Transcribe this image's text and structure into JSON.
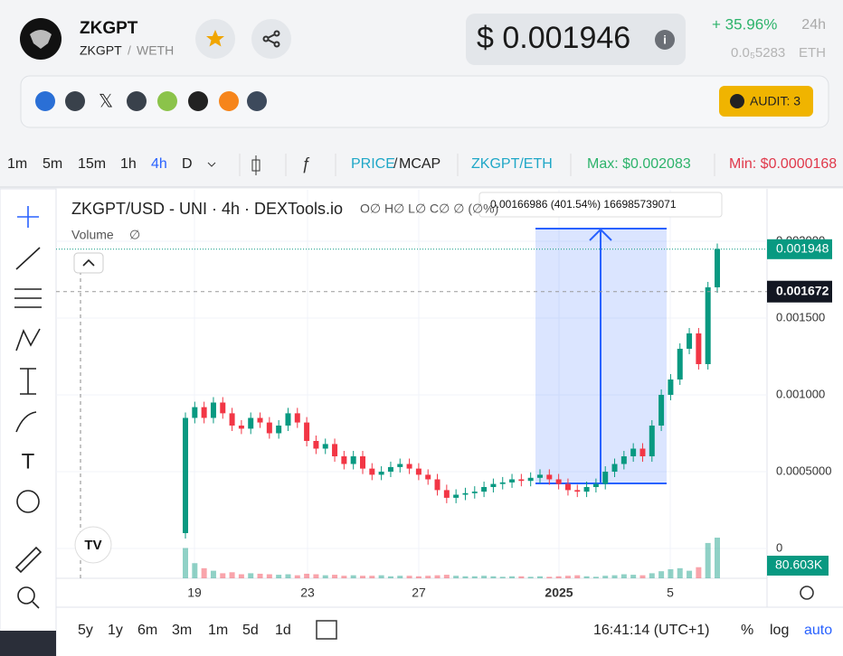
{
  "header": {
    "name": "ZKGPT",
    "pair_base": "ZKGPT",
    "pair_sep": "/",
    "pair_quote": "WETH",
    "price": "$ 0.001946",
    "change": "+ 35.96%",
    "change_period": "24h",
    "eth_price": "0.0₅5283",
    "eth_unit": "ETH",
    "audit": "AUDIT: 3"
  },
  "toolbar": {
    "intervals": [
      "1m",
      "5m",
      "15m",
      "1h",
      "4h",
      "D"
    ],
    "price": "PRICE",
    "sep": "/",
    "mcap": "MCAP",
    "pair": "ZKGPT/ETH",
    "max": "Max: $0.002083",
    "min": "Min: $0.0000168"
  },
  "chart_data": {
    "type": "candlestick",
    "title": "ZKGPT/USD - UNI · 4h · DEXTools.io",
    "ohlc": "O∅ H∅ L∅ C∅ ∅ (∅%)",
    "volume_title": "Volume",
    "volume_value": "∅",
    "tooltip": "0.00166986 (401.54%) 166985739071",
    "first_open": 0.0001,
    "closes": [
      0.00085,
      0.00092,
      0.00085,
      0.00095,
      0.00088,
      0.0008,
      0.00078,
      0.00085,
      0.00082,
      0.00075,
      0.0008,
      0.00088,
      0.00082,
      0.0007,
      0.00065,
      0.00068,
      0.0006,
      0.00055,
      0.0006,
      0.00052,
      0.00048,
      0.0005,
      0.00053,
      0.00055,
      0.00052,
      0.00048,
      0.00045,
      0.00038,
      0.00033,
      0.00035,
      0.00036,
      0.00037,
      0.0004,
      0.00042,
      0.00043,
      0.00045,
      0.00044,
      0.00046,
      0.00048,
      0.00045,
      0.00042,
      0.00038,
      0.00037,
      0.0004,
      0.00042,
      0.0005,
      0.00055,
      0.0006,
      0.00065,
      0.0006,
      0.0008,
      0.001,
      0.0011,
      0.0013,
      0.0014,
      0.0012,
      0.0017,
      0.00195
    ],
    "volumes": [
      60,
      30,
      20,
      15,
      10,
      12,
      8,
      10,
      9,
      8,
      7,
      8,
      6,
      9,
      8,
      6,
      7,
      5,
      6,
      5,
      5,
      6,
      4,
      5,
      5,
      4,
      5,
      6,
      7,
      5,
      4,
      4,
      5,
      4,
      3,
      4,
      4,
      3,
      4,
      3,
      4,
      5,
      6,
      4,
      3,
      5,
      6,
      8,
      7,
      6,
      10,
      14,
      18,
      20,
      15,
      22,
      70,
      80.603
    ],
    "up_color": "#089981",
    "down_color": "#f23645",
    "ylim": [
      -0.000194,
      0.002335
    ],
    "yticks": [
      {
        "value": 0,
        "label": "0"
      },
      {
        "value": 0.0005,
        "label": "0.0005000"
      },
      {
        "value": 0.001,
        "label": "0.001000"
      },
      {
        "value": 0.0015,
        "label": "0.001500"
      },
      {
        "value": 0.002,
        "label": "0.002000"
      }
    ],
    "last_price": 0.001948,
    "cursor_price": 0.001672,
    "volume_label": "80.603K",
    "x_labels": [
      "19",
      "23",
      "27",
      "2025",
      "5"
    ],
    "time": "16:41:14 (UTC+1)",
    "ranges": [
      "5y",
      "1y",
      "6m",
      "3m",
      "1m",
      "5d",
      "1d"
    ],
    "pct": "%",
    "log": "log",
    "auto": "auto"
  }
}
